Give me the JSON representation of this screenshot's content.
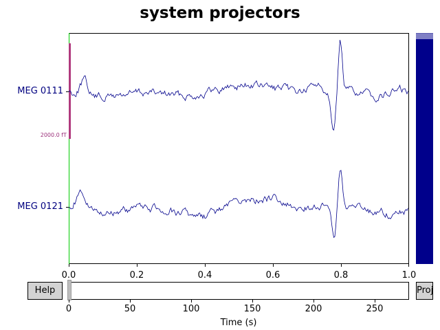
{
  "window": {
    "title": "system projectors"
  },
  "channels": [
    {
      "name": "MEG 0111"
    },
    {
      "name": "MEG 0121"
    }
  ],
  "scale_bar": {
    "label": "2000.0 fT"
  },
  "time_axis": {
    "ticks": [
      "0.0",
      "0.2",
      "0.4",
      "0.6",
      "0.8",
      "1.0"
    ]
  },
  "scrollbar": {
    "ticks": [
      "0",
      "50",
      "100",
      "150",
      "200",
      "250"
    ],
    "xlabel": "Time (s)"
  },
  "buttons": {
    "help": "Help",
    "proj": "Proj"
  },
  "colors": {
    "trace": "#00008b",
    "scale_bar": "#b03a7e",
    "marker": "#00cc00",
    "scroll_fill": "#00008b"
  }
}
